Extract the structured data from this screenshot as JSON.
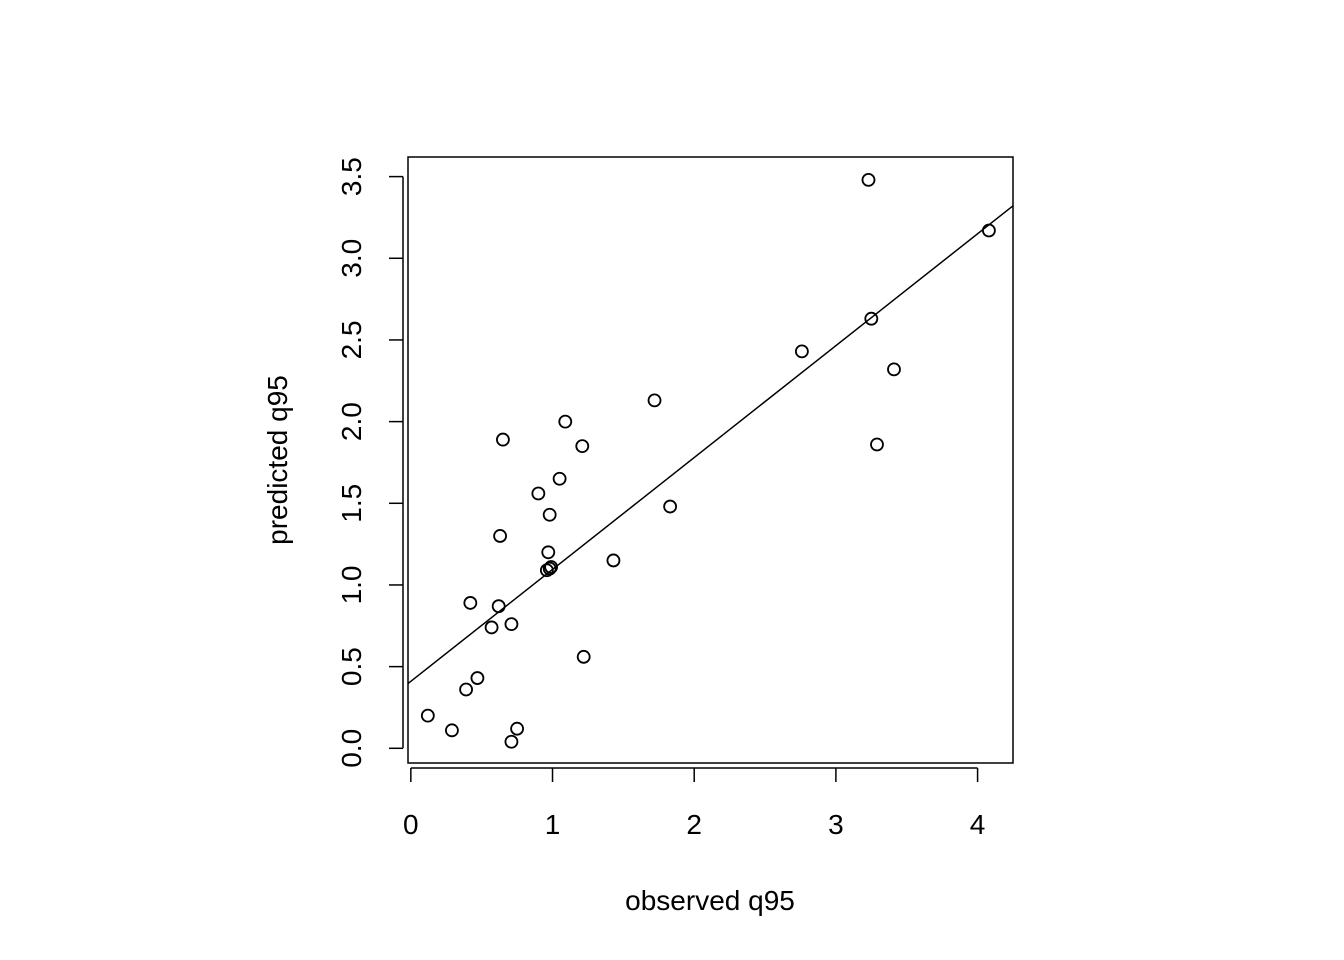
{
  "chart_data": {
    "type": "scatter",
    "title": "",
    "xlabel": "observed q95",
    "ylabel": "predicted q95",
    "xlim": [
      -0.02,
      4.25
    ],
    "ylim": [
      -0.09,
      3.62
    ],
    "x_ticks": [
      0,
      1,
      2,
      3,
      4
    ],
    "x_tick_labels": [
      "0",
      "1",
      "2",
      "3",
      "4"
    ],
    "y_ticks": [
      0.0,
      0.5,
      1.0,
      1.5,
      2.0,
      2.5,
      3.0,
      3.5
    ],
    "y_tick_labels": [
      "0.0",
      "0.5",
      "1.0",
      "1.5",
      "2.0",
      "2.5",
      "3.0",
      "3.5"
    ],
    "grid": false,
    "series": [
      {
        "marker": "open-circle",
        "x": [
          0.12,
          0.29,
          0.39,
          0.42,
          0.47,
          0.57,
          0.62,
          0.63,
          0.65,
          0.71,
          0.71,
          0.75,
          0.9,
          0.96,
          0.97,
          0.98,
          0.98,
          0.99,
          1.05,
          1.09,
          1.21,
          1.22,
          1.43,
          1.72,
          1.83,
          2.76,
          3.23,
          3.25,
          3.29,
          3.41,
          4.08
        ],
        "y": [
          0.2,
          0.11,
          0.36,
          0.89,
          0.43,
          0.74,
          0.87,
          1.3,
          1.89,
          0.76,
          0.04,
          0.12,
          1.56,
          1.09,
          1.2,
          1.43,
          1.1,
          1.11,
          1.65,
          2.0,
          1.85,
          0.56,
          1.15,
          2.13,
          1.48,
          2.43,
          3.48,
          2.63,
          1.86,
          2.32,
          3.17
        ]
      }
    ],
    "fit_line": {
      "intercept": 0.41,
      "slope": 0.685
    }
  }
}
